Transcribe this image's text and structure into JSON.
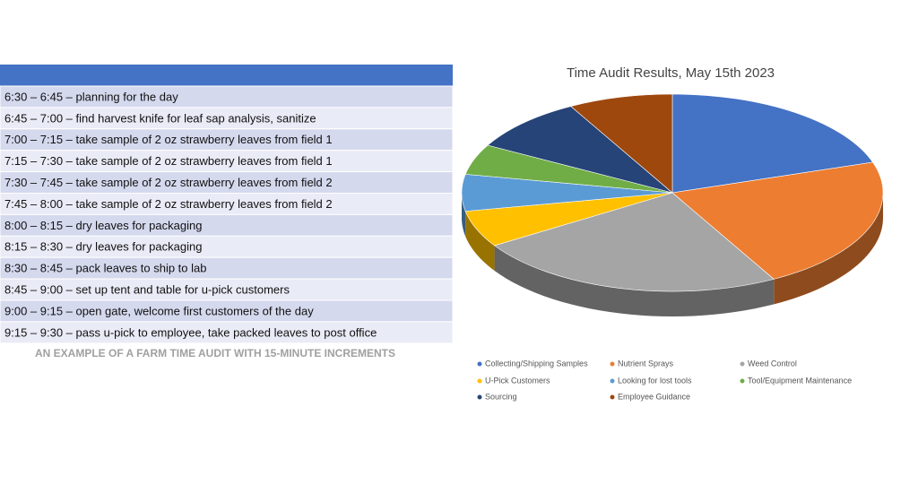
{
  "table": {
    "rows": [
      "6:30 – 6:45 – planning for the day",
      "6:45 – 7:00 – find harvest knife for leaf sap analysis, sanitize",
      "7:00 – 7:15 – take sample of 2 oz strawberry leaves from field 1",
      "7:15 – 7:30 – take sample of 2 oz strawberry leaves from field 1",
      "7:30 – 7:45 – take sample of 2 oz strawberry leaves from field 2",
      "7:45 – 8:00 – take sample of 2 oz strawberry leaves from field 2",
      "8:00 – 8:15 – dry leaves for packaging",
      "8:15 – 8:30 – dry leaves for packaging",
      "8:30 – 8:45 – pack leaves to ship to lab",
      "8:45 – 9:00 – set up tent and table for u-pick customers",
      "9:00 – 9:15 – open gate, welcome first customers of the day",
      "9:15 – 9:30 – pass u-pick to employee, take packed leaves to post office"
    ],
    "caption": "AN EXAMPLE OF A FARM TIME AUDIT WITH 15-MINUTE INCREMENTS"
  },
  "chart_data": {
    "type": "pie3d",
    "title": "Time Audit Results, May 15th 2023",
    "categories": [
      "Collecting/Shipping Samples",
      "Nutrient Sprays",
      "Weed Control",
      "U-Pick Customers",
      "Looking for lost tools",
      "Tool/Equipment Maintenance",
      "Sourcing",
      "Employee Guidance"
    ],
    "values": [
      20,
      22,
      24,
      6,
      6,
      5,
      9,
      8
    ],
    "colors": [
      "#4472c4",
      "#ed7d31",
      "#a5a5a5",
      "#ffc000",
      "#5b9bd5",
      "#70ad47",
      "#264478",
      "#9e480e"
    ]
  }
}
